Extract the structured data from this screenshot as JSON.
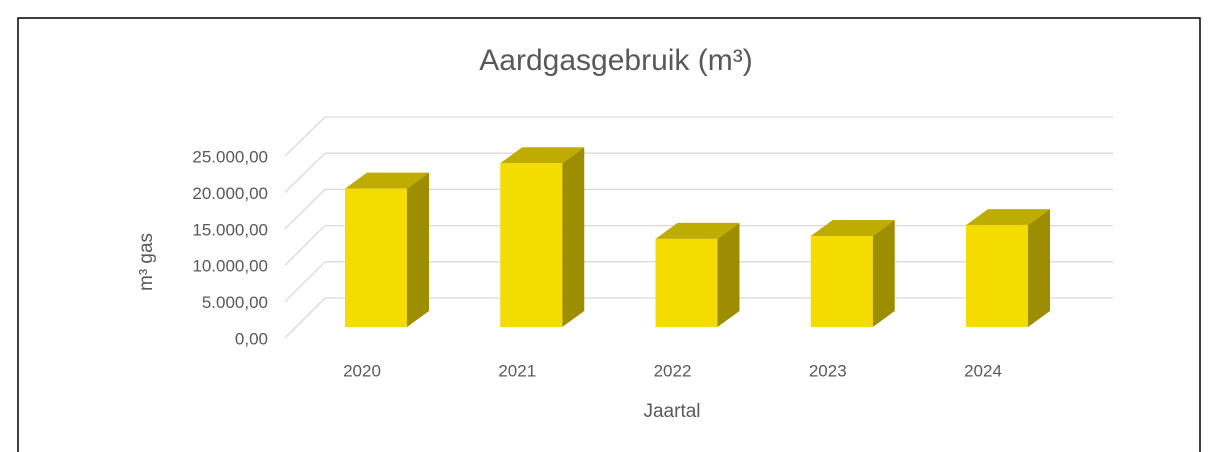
{
  "chart_data": {
    "type": "bar3d",
    "title": "Aardgasgebruik (m³)",
    "y_label": "m³ gas",
    "x_label": "Jaartal",
    "categories": [
      "2020",
      "2021",
      "2022",
      "2023",
      "2024"
    ],
    "values": [
      19000,
      22500,
      12100,
      12500,
      14000
    ],
    "color": "#f5dc00",
    "ylim": [
      0,
      25000
    ],
    "yticks": [
      {
        "value": 0,
        "label": "0,00"
      },
      {
        "value": 5000,
        "label": "5.000,00"
      },
      {
        "value": 10000,
        "label": "10.000,00"
      },
      {
        "value": 15000,
        "label": "15.000,00"
      },
      {
        "value": 20000,
        "label": "20.000,00"
      },
      {
        "value": 25000,
        "label": "25.000,00"
      }
    ],
    "grid": true
  }
}
